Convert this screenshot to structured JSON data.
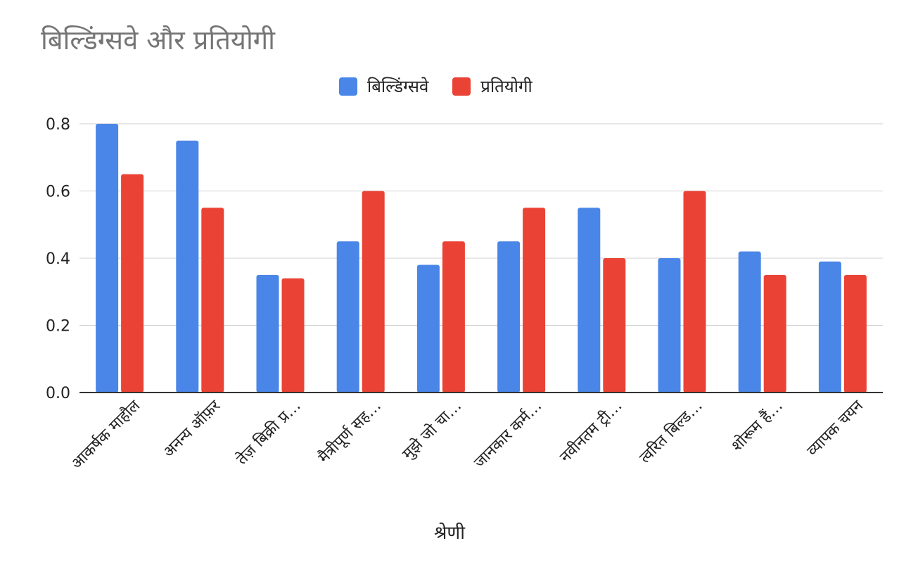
{
  "chart_data": {
    "type": "bar",
    "title": "बिल्डिंग्सवे और प्रतियोगी",
    "xlabel": "श्रेणी",
    "ylabel": "",
    "ylim": [
      0,
      0.8
    ],
    "yticks": [
      "0.0",
      "0.2",
      "0.4",
      "0.6",
      "0.8"
    ],
    "categories": [
      "आकर्षक माहौल",
      "अनन्य ऑफ़र",
      "तेज़ बिक्री प्र…",
      "मैत्रीपूर्ण सह…",
      "मुझे जो चा…",
      "जानकार कर्म…",
      "नवीनतम ट्री…",
      "त्वरित बिल्ड…",
      "शोरूम हैं…",
      "व्यापक चयन"
    ],
    "series": [
      {
        "name": "बिल्डिंग्सवे",
        "color": "#4a86e8",
        "values": [
          0.8,
          0.75,
          0.35,
          0.45,
          0.38,
          0.45,
          0.55,
          0.4,
          0.42,
          0.39
        ]
      },
      {
        "name": "प्रतियोगी",
        "color": "#ea4335",
        "values": [
          0.65,
          0.55,
          0.34,
          0.6,
          0.45,
          0.55,
          0.4,
          0.6,
          0.35,
          0.35
        ]
      }
    ],
    "grid": true,
    "legend_position": "top-center"
  }
}
